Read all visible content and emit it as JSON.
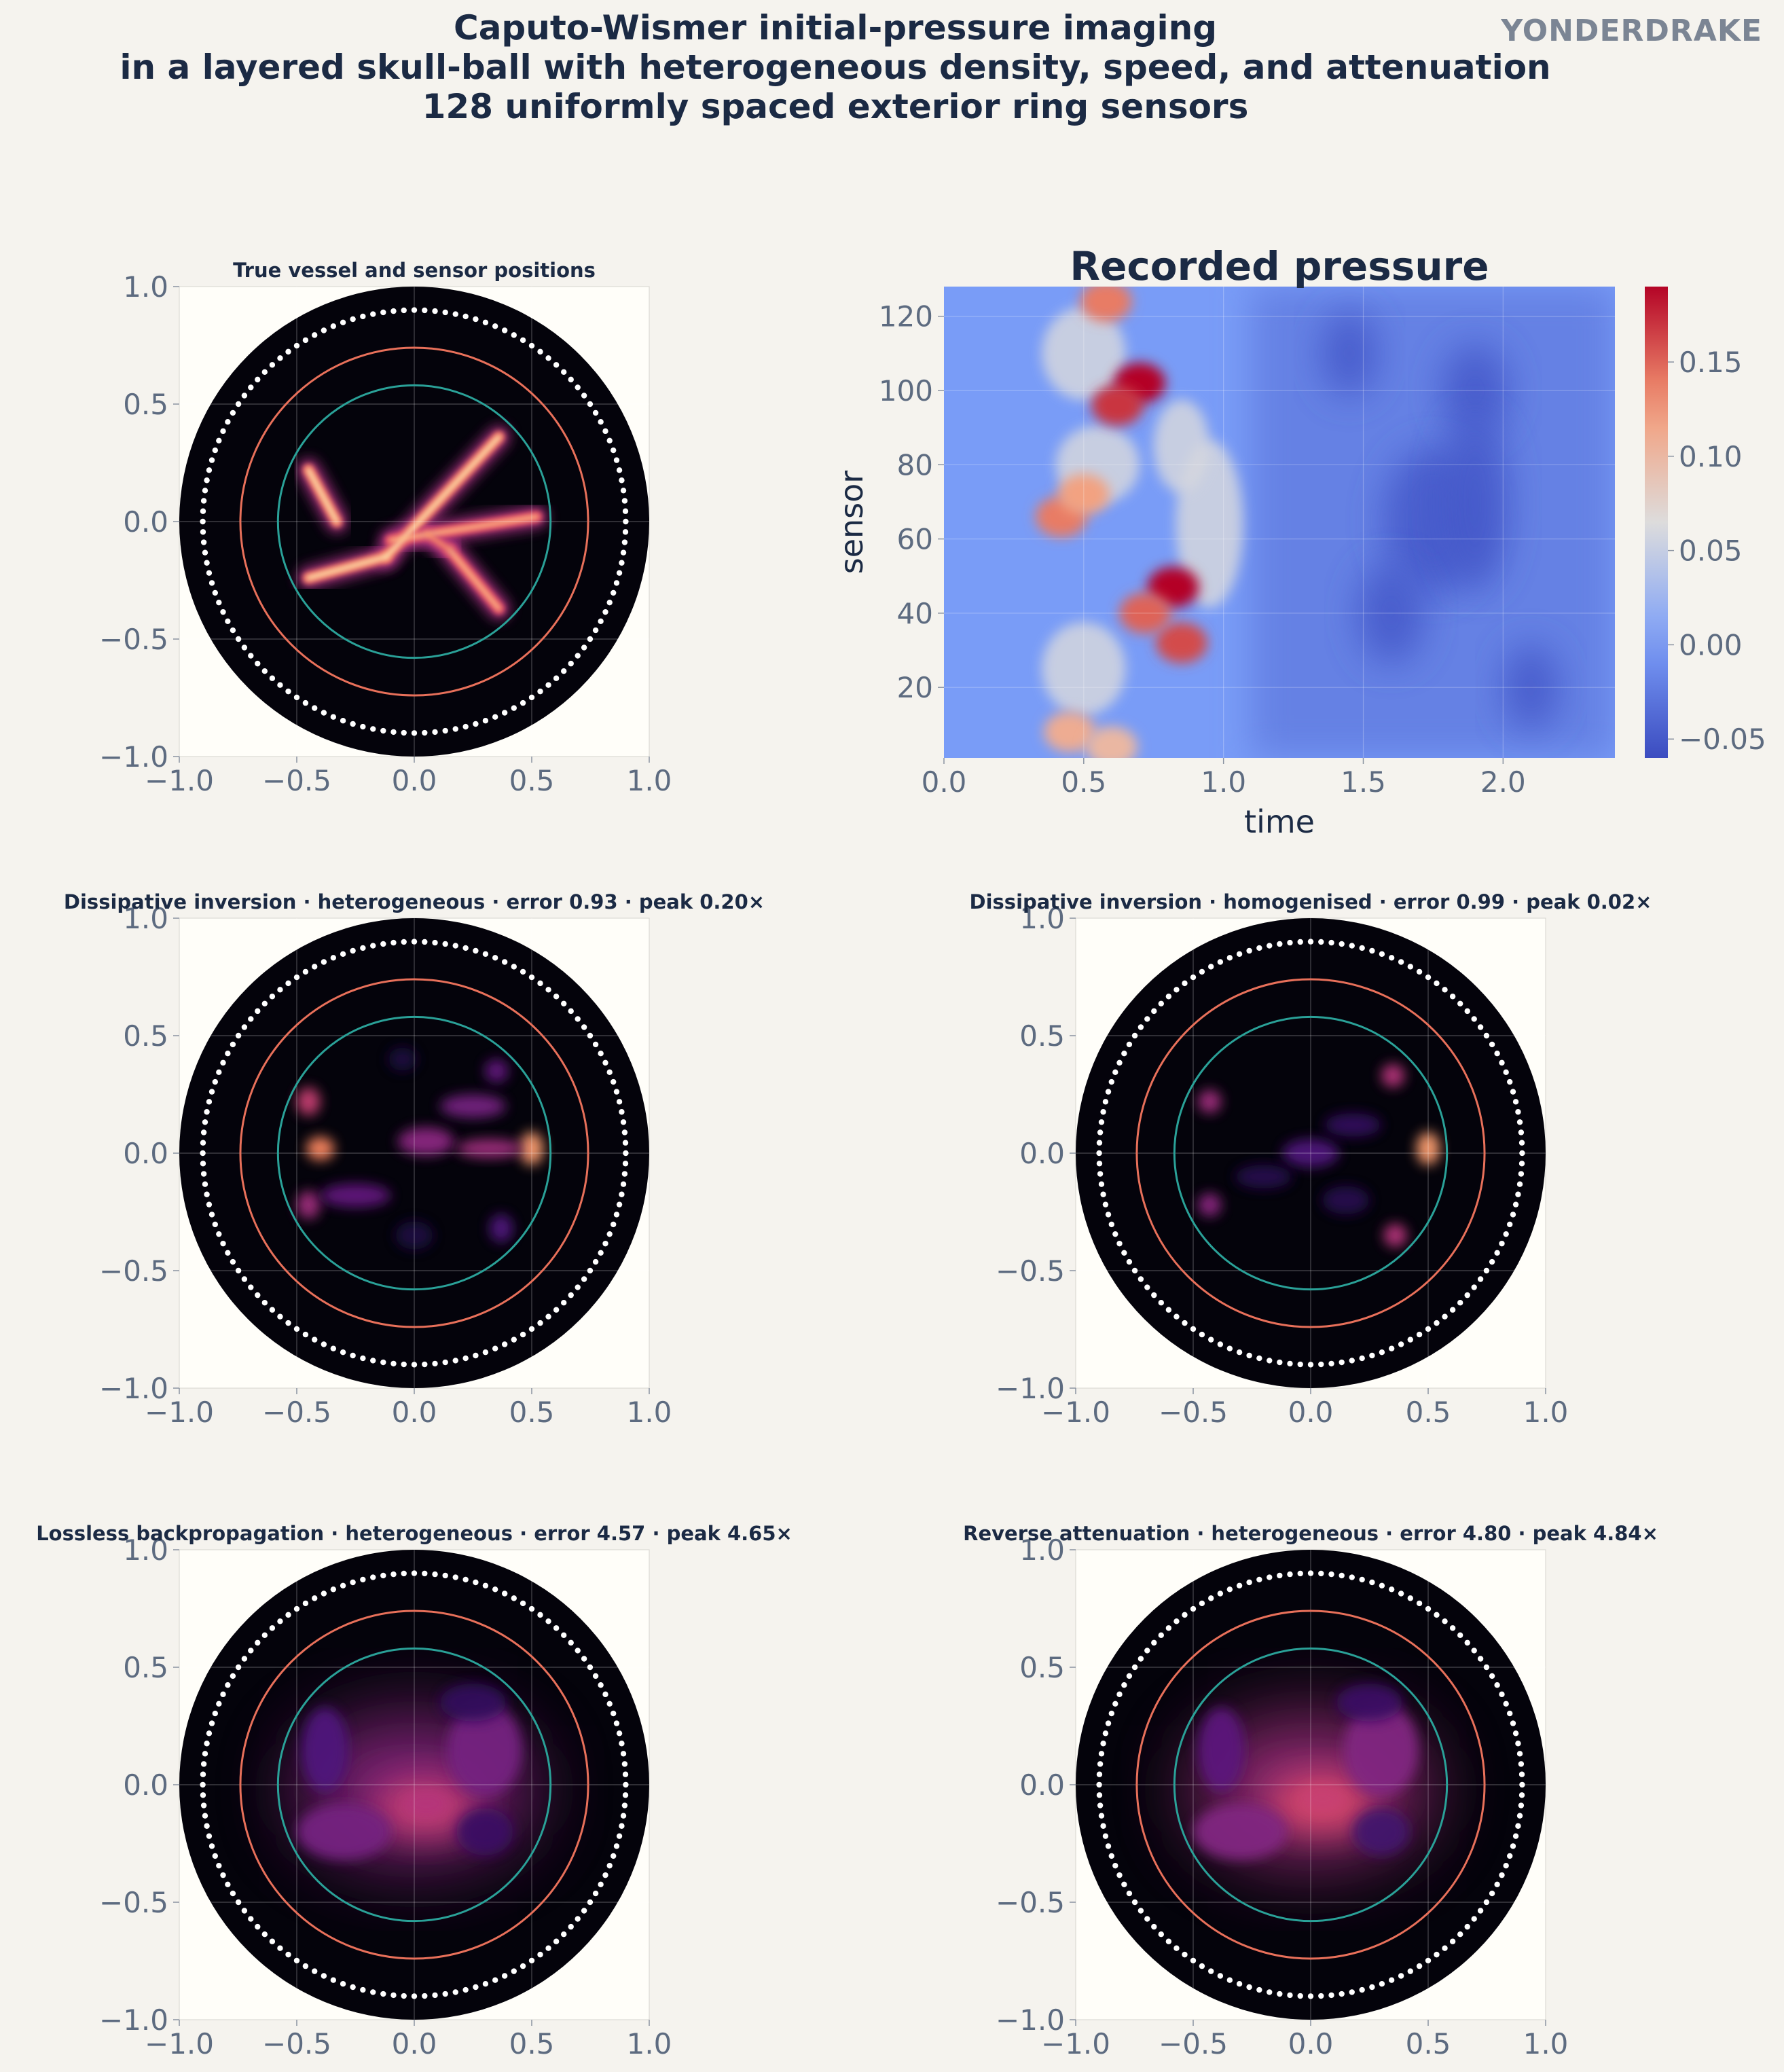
{
  "figure": {
    "title_lines": [
      "Caputo-Wismer initial-pressure imaging",
      "in a layered skull-ball with heterogeneous density, speed, and attenuation",
      "128 uniformly spaced exterior ring sensors"
    ],
    "brand": "YONDERDRAKE",
    "colors": {
      "background": "#f5f3ee",
      "panel_bg": "#fffef9",
      "disk": "#04030b",
      "sensors": "#ffffff",
      "outer_ring": "#e8705a",
      "inner_ring": "#2aa198",
      "text": "#1b2a44",
      "ticks": "#5d6b80"
    }
  },
  "chart_data": [
    {
      "id": "truth",
      "type": "heatmap",
      "title": "True vessel and sensor positions",
      "xlim": [
        -1.0,
        1.0
      ],
      "ylim": [
        -1.0,
        1.0
      ],
      "xticks": [
        "−1.0",
        "−0.5",
        "0.0",
        "0.5",
        "1.0"
      ],
      "yticks": [
        "−1.0",
        "−0.5",
        "0.0",
        "0.5",
        "1.0"
      ],
      "colormap": "magma",
      "domain_radius": 1.0,
      "sensor_count": 128,
      "sensor_ring_radius": 0.9,
      "skull_outer_radius": 0.74,
      "skull_inner_radius": 0.58,
      "vessels": [
        {
          "from": [
            -0.45,
            0.22
          ],
          "to": [
            -0.33,
            0.0
          ],
          "intensity": 1.0
        },
        {
          "from": [
            -0.45,
            -0.24
          ],
          "to": [
            -0.12,
            -0.15
          ],
          "intensity": 1.0
        },
        {
          "from": [
            -0.12,
            -0.15
          ],
          "to": [
            0.36,
            0.36
          ],
          "intensity": 1.0
        },
        {
          "from": [
            -0.1,
            -0.08
          ],
          "to": [
            0.52,
            0.02
          ],
          "intensity": 0.9
        },
        {
          "from": [
            0.15,
            -0.12
          ],
          "to": [
            0.36,
            -0.37
          ],
          "intensity": 0.9
        },
        {
          "from": [
            0.05,
            -0.05
          ],
          "to": [
            0.15,
            -0.12
          ],
          "intensity": 0.8
        }
      ]
    },
    {
      "id": "recorded",
      "type": "heatmap",
      "title": "Recorded pressure",
      "xlabel": "time",
      "ylabel": "sensor",
      "xlim": [
        0.0,
        2.4
      ],
      "ylim": [
        1,
        128
      ],
      "xticks": [
        "0.0",
        "0.5",
        "1.0",
        "1.5",
        "2.0"
      ],
      "yticks": [
        "20",
        "40",
        "60",
        "80",
        "100",
        "120"
      ],
      "colormap": "coolwarm",
      "colorbar_range": [
        -0.06,
        0.19
      ],
      "colorbar_ticks": [
        "−0.05",
        "0.00",
        "0.05",
        "0.10",
        "0.15"
      ],
      "hotspots": [
        {
          "time": 0.7,
          "sensor": 102,
          "value": 0.19
        },
        {
          "time": 0.62,
          "sensor": 96,
          "value": 0.17
        },
        {
          "time": 0.58,
          "sensor": 124,
          "value": 0.14
        },
        {
          "time": 0.82,
          "sensor": 47,
          "value": 0.19
        },
        {
          "time": 0.85,
          "sensor": 32,
          "value": 0.16
        },
        {
          "time": 0.72,
          "sensor": 40,
          "value": 0.15
        },
        {
          "time": 0.42,
          "sensor": 66,
          "value": 0.14
        },
        {
          "time": 0.5,
          "sensor": 72,
          "value": 0.12
        },
        {
          "time": 0.45,
          "sensor": 8,
          "value": 0.11
        },
        {
          "time": 0.6,
          "sensor": 4,
          "value": 0.1
        }
      ]
    },
    {
      "id": "diss_het",
      "type": "heatmap",
      "title": "Dissipative inversion · heterogeneous · error 0.93 · peak 0.20×",
      "xlim": [
        -1.0,
        1.0
      ],
      "ylim": [
        -1.0,
        1.0
      ],
      "xticks": [
        "−1.0",
        "−0.5",
        "0.0",
        "0.5",
        "1.0"
      ],
      "yticks": [
        "−1.0",
        "−0.5",
        "0.0",
        "0.5",
        "1.0"
      ],
      "colormap": "magma",
      "sensor_count": 128,
      "sensor_ring_radius": 0.9,
      "skull_outer_radius": 0.74,
      "skull_inner_radius": 0.58,
      "blobs": [
        {
          "x": -0.4,
          "y": 0.02,
          "rx": 0.06,
          "ry": 0.05,
          "v": 0.75
        },
        {
          "x": 0.5,
          "y": 0.02,
          "rx": 0.05,
          "ry": 0.07,
          "v": 0.8
        },
        {
          "x": -0.45,
          "y": 0.22,
          "rx": 0.05,
          "ry": 0.06,
          "v": 0.55
        },
        {
          "x": -0.45,
          "y": -0.22,
          "rx": 0.05,
          "ry": 0.06,
          "v": 0.45
        },
        {
          "x": 0.05,
          "y": 0.05,
          "rx": 0.12,
          "ry": 0.06,
          "v": 0.4
        },
        {
          "x": 0.25,
          "y": 0.2,
          "rx": 0.14,
          "ry": 0.05,
          "v": 0.35
        },
        {
          "x": 0.32,
          "y": 0.02,
          "rx": 0.14,
          "ry": 0.04,
          "v": 0.45
        },
        {
          "x": -0.25,
          "y": -0.18,
          "rx": 0.15,
          "ry": 0.05,
          "v": 0.3
        },
        {
          "x": 0.35,
          "y": 0.35,
          "rx": 0.05,
          "ry": 0.05,
          "v": 0.3
        },
        {
          "x": 0.37,
          "y": -0.32,
          "rx": 0.05,
          "ry": 0.06,
          "v": 0.25
        },
        {
          "x": 0.0,
          "y": -0.35,
          "rx": 0.08,
          "ry": 0.06,
          "v": 0.12
        },
        {
          "x": -0.05,
          "y": 0.4,
          "rx": 0.06,
          "ry": 0.05,
          "v": 0.12
        }
      ]
    },
    {
      "id": "diss_hom",
      "type": "heatmap",
      "title": "Dissipative inversion · homogenised · error 0.99 · peak 0.02×",
      "xlim": [
        -1.0,
        1.0
      ],
      "ylim": [
        -1.0,
        1.0
      ],
      "xticks": [
        "−1.0",
        "−0.5",
        "0.0",
        "0.5",
        "1.0"
      ],
      "yticks": [
        "−1.0",
        "−0.5",
        "0.0",
        "0.5",
        "1.0"
      ],
      "colormap": "magma",
      "sensor_count": 128,
      "sensor_ring_radius": 0.9,
      "skull_outer_radius": 0.74,
      "skull_inner_radius": 0.58,
      "blobs": [
        {
          "x": 0.5,
          "y": 0.02,
          "rx": 0.05,
          "ry": 0.07,
          "v": 0.8
        },
        {
          "x": 0.35,
          "y": 0.33,
          "rx": 0.05,
          "ry": 0.05,
          "v": 0.5
        },
        {
          "x": 0.36,
          "y": -0.35,
          "rx": 0.05,
          "ry": 0.05,
          "v": 0.5
        },
        {
          "x": -0.43,
          "y": 0.22,
          "rx": 0.05,
          "ry": 0.05,
          "v": 0.45
        },
        {
          "x": -0.43,
          "y": -0.22,
          "rx": 0.05,
          "ry": 0.05,
          "v": 0.4
        },
        {
          "x": 0.0,
          "y": 0.0,
          "rx": 0.12,
          "ry": 0.06,
          "v": 0.25
        },
        {
          "x": 0.18,
          "y": 0.12,
          "rx": 0.12,
          "ry": 0.05,
          "v": 0.18
        },
        {
          "x": -0.2,
          "y": -0.1,
          "rx": 0.12,
          "ry": 0.05,
          "v": 0.15
        },
        {
          "x": 0.15,
          "y": -0.2,
          "rx": 0.1,
          "ry": 0.06,
          "v": 0.15
        }
      ]
    },
    {
      "id": "lossless",
      "type": "heatmap",
      "title": "Lossless backpropagation · heterogeneous · error 4.57 · peak 4.65×",
      "xlim": [
        -1.0,
        1.0
      ],
      "ylim": [
        -1.0,
        1.0
      ],
      "xticks": [
        "−1.0",
        "−0.5",
        "0.0",
        "0.5",
        "1.0"
      ],
      "yticks": [
        "−1.0",
        "−0.5",
        "0.0",
        "0.5",
        "1.0"
      ],
      "colormap": "magma",
      "sensor_count": 128,
      "sensor_ring_radius": 0.9,
      "skull_outer_radius": 0.74,
      "skull_inner_radius": 0.58,
      "blobs": [
        {
          "x": 0.0,
          "y": -0.02,
          "rx": 0.5,
          "ry": 0.3,
          "v": 0.4
        },
        {
          "x": 0.05,
          "y": -0.1,
          "rx": 0.22,
          "ry": 0.12,
          "v": 0.55
        },
        {
          "x": 0.05,
          "y": -0.08,
          "rx": 0.1,
          "ry": 0.06,
          "v": 0.5
        },
        {
          "x": -0.3,
          "y": -0.2,
          "rx": 0.2,
          "ry": 0.12,
          "v": 0.35
        },
        {
          "x": 0.3,
          "y": 0.15,
          "rx": 0.16,
          "ry": 0.2,
          "v": 0.35
        },
        {
          "x": -0.38,
          "y": 0.15,
          "rx": 0.1,
          "ry": 0.18,
          "v": 0.25
        },
        {
          "x": 0.3,
          "y": -0.2,
          "rx": 0.12,
          "ry": 0.1,
          "v": 0.2
        },
        {
          "x": 0.25,
          "y": 0.35,
          "rx": 0.14,
          "ry": 0.08,
          "v": 0.18
        }
      ]
    },
    {
      "id": "reverse",
      "type": "heatmap",
      "title": "Reverse attenuation · heterogeneous · error 4.80 · peak 4.84×",
      "xlim": [
        -1.0,
        1.0
      ],
      "ylim": [
        -1.0,
        1.0
      ],
      "xticks": [
        "−1.0",
        "−0.5",
        "0.0",
        "0.5",
        "1.0"
      ],
      "yticks": [
        "−1.0",
        "−0.5",
        "0.0",
        "0.5",
        "1.0"
      ],
      "colormap": "magma",
      "sensor_count": 128,
      "sensor_ring_radius": 0.9,
      "skull_outer_radius": 0.74,
      "skull_inner_radius": 0.58,
      "blobs": [
        {
          "x": 0.0,
          "y": -0.02,
          "rx": 0.5,
          "ry": 0.3,
          "v": 0.45
        },
        {
          "x": 0.05,
          "y": -0.08,
          "rx": 0.22,
          "ry": 0.12,
          "v": 0.6
        },
        {
          "x": 0.05,
          "y": -0.06,
          "rx": 0.1,
          "ry": 0.06,
          "v": 0.55
        },
        {
          "x": -0.3,
          "y": -0.2,
          "rx": 0.2,
          "ry": 0.12,
          "v": 0.38
        },
        {
          "x": 0.3,
          "y": 0.15,
          "rx": 0.16,
          "ry": 0.2,
          "v": 0.38
        },
        {
          "x": -0.38,
          "y": 0.15,
          "rx": 0.1,
          "ry": 0.18,
          "v": 0.28
        },
        {
          "x": 0.3,
          "y": -0.2,
          "rx": 0.12,
          "ry": 0.1,
          "v": 0.22
        },
        {
          "x": 0.25,
          "y": 0.35,
          "rx": 0.14,
          "ry": 0.08,
          "v": 0.2
        }
      ]
    }
  ]
}
